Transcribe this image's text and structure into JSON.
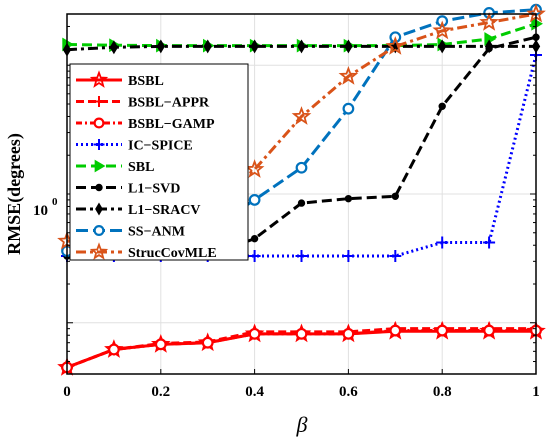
{
  "chart_data": {
    "type": "line",
    "title": "",
    "xlabel": "β",
    "ylabel": "RMSE(degrees)",
    "yscale": "log",
    "xlim": [
      0,
      1
    ],
    "ylim": [
      0.04,
      25
    ],
    "x": [
      0,
      0.1,
      0.2,
      0.3,
      0.4,
      0.5,
      0.6,
      0.7,
      0.8,
      0.9,
      1
    ],
    "xtick_labels": [
      "0",
      "0.2",
      "0.4",
      "0.6",
      "0.8",
      "1"
    ],
    "xtick_values": [
      0,
      0.2,
      0.4,
      0.6,
      0.8,
      1
    ],
    "ytick_label_base": "10",
    "ytick_label_exp": "0",
    "grid": true,
    "legend_position": "upper-left",
    "series": [
      {
        "name": "BSBL",
        "color": "#ff0000",
        "dash": "",
        "marker": "star",
        "values": [
          0.045,
          0.062,
          0.068,
          0.07,
          0.082,
          0.082,
          0.082,
          0.086,
          0.086,
          0.086,
          0.086
        ]
      },
      {
        "name": "BSBL−APPR",
        "color": "#ff0000",
        "dash": "8,4",
        "marker": "plus",
        "values": [
          0.045,
          0.062,
          0.069,
          0.071,
          0.085,
          0.085,
          0.085,
          0.09,
          0.09,
          0.09,
          0.09
        ]
      },
      {
        "name": "BSBL−GAMP",
        "color": "#ff0000",
        "dash": "6,3,2,3",
        "marker": "circle",
        "values": [
          0.045,
          0.062,
          0.068,
          0.07,
          0.082,
          0.082,
          0.082,
          0.087,
          0.087,
          0.087,
          0.087
        ]
      },
      {
        "name": "IC−SPICE",
        "color": "#0000ff",
        "dash": "2,3",
        "marker": "plus",
        "values": [
          0.33,
          0.33,
          0.33,
          0.33,
          0.33,
          0.33,
          0.33,
          0.33,
          0.42,
          0.42,
          12
        ]
      },
      {
        "name": "SBL",
        "color": "#00cc00",
        "dash": "10,5",
        "marker": "triangle",
        "values": [
          14.5,
          14.3,
          14.2,
          14.2,
          14.2,
          14.2,
          14.2,
          14.2,
          14.5,
          16,
          21
        ]
      },
      {
        "name": "L1−SVD",
        "color": "#000000",
        "dash": "10,5",
        "marker": "dot",
        "values": [
          0.33,
          0.33,
          0.33,
          0.33,
          0.45,
          0.85,
          0.92,
          0.96,
          4.8,
          13.5,
          16.5
        ]
      },
      {
        "name": "L1−SRACV",
        "color": "#000000",
        "dash": "10,4,3,4",
        "marker": "diamond",
        "values": [
          13.2,
          13.8,
          14,
          14,
          14,
          14,
          14,
          14,
          14,
          14,
          14
        ]
      },
      {
        "name": "SS−ANM",
        "color": "#0072bd",
        "dash": "12,5",
        "marker": "circle",
        "values": [
          0.36,
          0.42,
          0.46,
          0.52,
          0.9,
          1.6,
          4.6,
          16.5,
          22,
          25.5,
          27
        ]
      },
      {
        "name": "StrucCovMLE",
        "color": "#d95319",
        "dash": "10,4,3,4",
        "marker": "star",
        "values": [
          0.43,
          0.45,
          0.47,
          0.8,
          1.55,
          4,
          8.2,
          14,
          18.5,
          21.5,
          25
        ]
      }
    ]
  }
}
